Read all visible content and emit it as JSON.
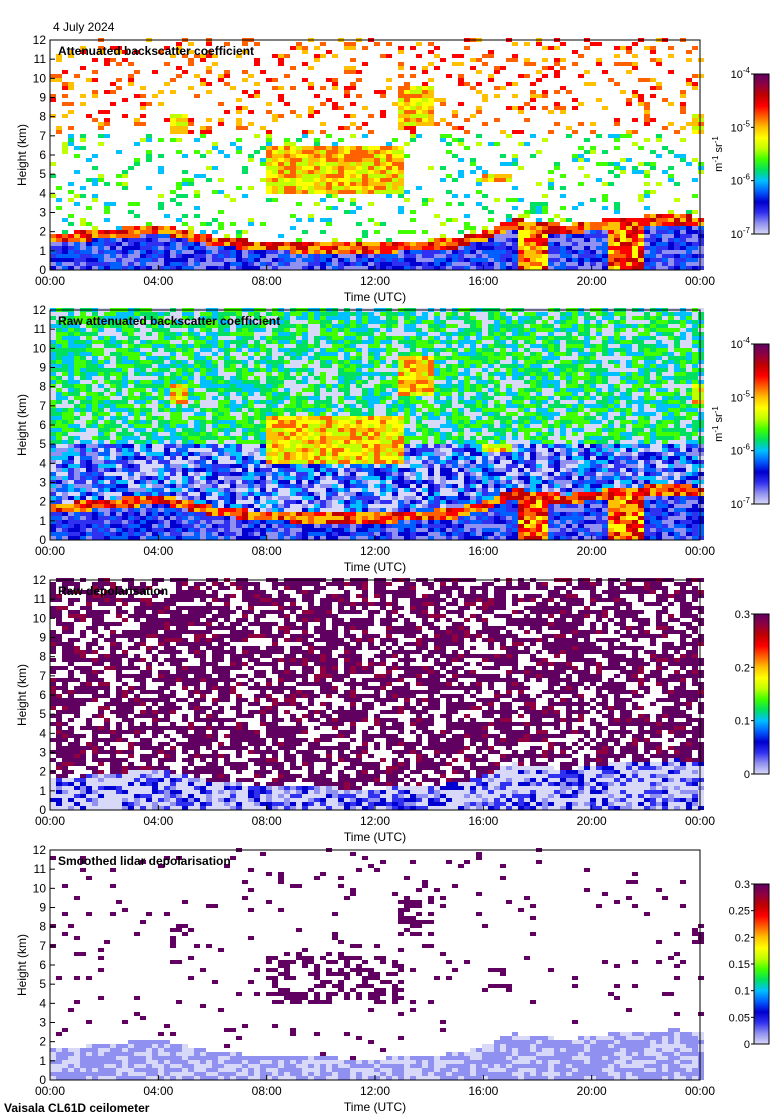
{
  "date": "4 July 2024",
  "instrument": "Vaisala CL61D ceilometer",
  "palette": [
    "#d8d8f8",
    "#9090f0",
    "#3030f0",
    "#0000d0",
    "#0060ff",
    "#00c0ff",
    "#00e060",
    "#40ff00",
    "#c0ff00",
    "#ffff00",
    "#ffc000",
    "#ff6000",
    "#ff0000",
    "#c00000",
    "#900040",
    "#600060"
  ],
  "chart_data": [
    {
      "type": "heatmap",
      "title": "Attenuated backscatter coefficient",
      "xlabel": "Time (UTC)",
      "ylabel": "Height (km)",
      "xticks": [
        "00:00",
        "04:00",
        "08:00",
        "12:00",
        "16:00",
        "20:00",
        "00:00"
      ],
      "yticks": [
        "0",
        "1",
        "2",
        "3",
        "4",
        "5",
        "6",
        "7",
        "8",
        "9",
        "10",
        "11",
        "12"
      ],
      "xlim": [
        0,
        24
      ],
      "ylim": [
        0,
        12
      ],
      "colorbar": {
        "scale": "log",
        "range": [
          1e-07,
          0.0001
        ],
        "unit": "m-1 sr-1",
        "tick_labels": [
          {
            "base": "10",
            "exp": "-7"
          },
          {
            "base": "10",
            "exp": "-6"
          },
          {
            "base": "10",
            "exp": "-5"
          },
          {
            "base": "10",
            "exp": "-4"
          }
        ]
      },
      "features": [
        {
          "name": "boundary layer top",
          "kind": "layer",
          "height_km": [
            [
              0,
              1.6
            ],
            [
              4,
              2.1
            ],
            [
              6,
              1.5
            ],
            [
              8,
              1.2
            ],
            [
              12,
              1.1
            ],
            [
              15,
              1.4
            ],
            [
              16,
              1.8
            ],
            [
              17,
              2.4
            ],
            [
              19,
              2.1
            ],
            [
              21,
              2.5
            ],
            [
              23,
              2.6
            ],
            [
              24,
              2.5
            ]
          ]
        },
        {
          "name": "mid cloud 08-13",
          "kind": "cloud",
          "x": [
            8.0,
            13.0
          ],
          "height_km": [
            4.0,
            6.5
          ]
        },
        {
          "name": "cirrus 04-05",
          "kind": "cloud",
          "x": [
            4.5,
            5.0
          ],
          "height_km": [
            7.0,
            8.0
          ]
        },
        {
          "name": "cirrus 13-14",
          "kind": "cloud",
          "x": [
            12.8,
            14.0
          ],
          "height_km": [
            7.5,
            9.5
          ]
        },
        {
          "name": "cloud 16",
          "kind": "cloud",
          "x": [
            15.8,
            17.0
          ],
          "height_km": [
            4.5,
            5.0
          ]
        },
        {
          "name": "cloud 23.5",
          "kind": "cloud",
          "x": [
            23.5,
            24.0
          ],
          "height_km": [
            7.0,
            8.0
          ]
        }
      ]
    },
    {
      "type": "heatmap",
      "title": "Raw attenuated backscatter coefficient",
      "xlabel": "Time (UTC)",
      "ylabel": "Height (km)",
      "xticks": [
        "00:00",
        "04:00",
        "08:00",
        "12:00",
        "16:00",
        "20:00",
        "00:00"
      ],
      "yticks": [
        "0",
        "1",
        "2",
        "3",
        "4",
        "5",
        "6",
        "7",
        "8",
        "9",
        "10",
        "11",
        "12"
      ],
      "xlim": [
        0,
        24
      ],
      "ylim": [
        0,
        12
      ],
      "colorbar": {
        "scale": "log",
        "range": [
          1e-07,
          0.0001
        ],
        "unit": "m-1 sr-1",
        "tick_labels": [
          {
            "base": "10",
            "exp": "-7"
          },
          {
            "base": "10",
            "exp": "-6"
          },
          {
            "base": "10",
            "exp": "-5"
          },
          {
            "base": "10",
            "exp": "-4"
          }
        ]
      }
    },
    {
      "type": "heatmap",
      "title": "Raw depolarisation",
      "xlabel": "Time (UTC)",
      "ylabel": "Height (km)",
      "xticks": [
        "00:00",
        "04:00",
        "08:00",
        "12:00",
        "16:00",
        "20:00",
        "00:00"
      ],
      "yticks": [
        "0",
        "1",
        "2",
        "3",
        "4",
        "5",
        "6",
        "7",
        "8",
        "9",
        "10",
        "11",
        "12"
      ],
      "xlim": [
        0,
        24
      ],
      "ylim": [
        0,
        12
      ],
      "colorbar": {
        "scale": "linear",
        "range": [
          0,
          0.3
        ],
        "tick_labels": [
          "0",
          "0.1",
          "0.2",
          "0.3"
        ]
      }
    },
    {
      "type": "heatmap",
      "title": "Smoothed lidar depolarisation",
      "xlabel": "Time (UTC)",
      "ylabel": "Height (km)",
      "xticks": [
        "00:00",
        "04:00",
        "08:00",
        "12:00",
        "16:00",
        "20:00",
        "00:00"
      ],
      "yticks": [
        "0",
        "1",
        "2",
        "3",
        "4",
        "5",
        "6",
        "7",
        "8",
        "9",
        "10",
        "11",
        "12"
      ],
      "xlim": [
        0,
        24
      ],
      "ylim": [
        0,
        12
      ],
      "colorbar": {
        "scale": "linear",
        "range": [
          0,
          0.3
        ],
        "tick_labels": [
          "0",
          "0.05",
          "0.1",
          "0.15",
          "0.2",
          "0.25",
          "0.3"
        ]
      }
    }
  ]
}
